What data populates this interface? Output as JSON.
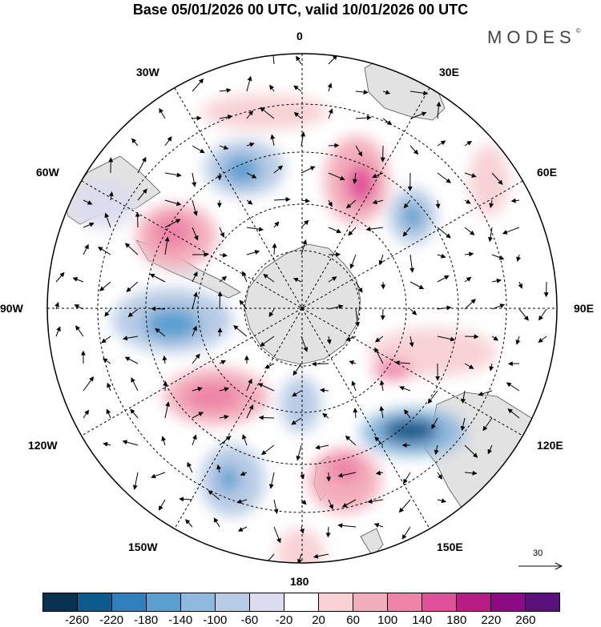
{
  "title": "Base 05/01/2026 00 UTC, valid 10/01/2026 00 UTC",
  "brand": "MODES",
  "brand_mark": "©",
  "longitude_labels": {
    "deg0": "0",
    "deg30e": "30E",
    "deg60e": "60E",
    "deg90e": "90E",
    "deg120e": "120E",
    "deg150e": "150E",
    "deg180": "180",
    "deg150w": "150W",
    "deg120w": "120W",
    "deg90w": "90W",
    "deg60w": "60W",
    "deg30w": "30W"
  },
  "reference_vector": {
    "label": "30"
  },
  "colorbar": {
    "colors": [
      "#08304f",
      "#0e5a8c",
      "#2f7fbd",
      "#5a9fd0",
      "#8fb9de",
      "#b8cbe5",
      "#dddcee",
      "#ffffff",
      "#f8d2d4",
      "#f3aebb",
      "#ee84a8",
      "#e0519a",
      "#b81c85",
      "#8c0a83",
      "#5a0f7a"
    ],
    "ticks": [
      "-260",
      "-220",
      "-180",
      "-140",
      "-100",
      "-60",
      "-20",
      "20",
      "60",
      "100",
      "140",
      "180",
      "220",
      "260"
    ]
  }
}
